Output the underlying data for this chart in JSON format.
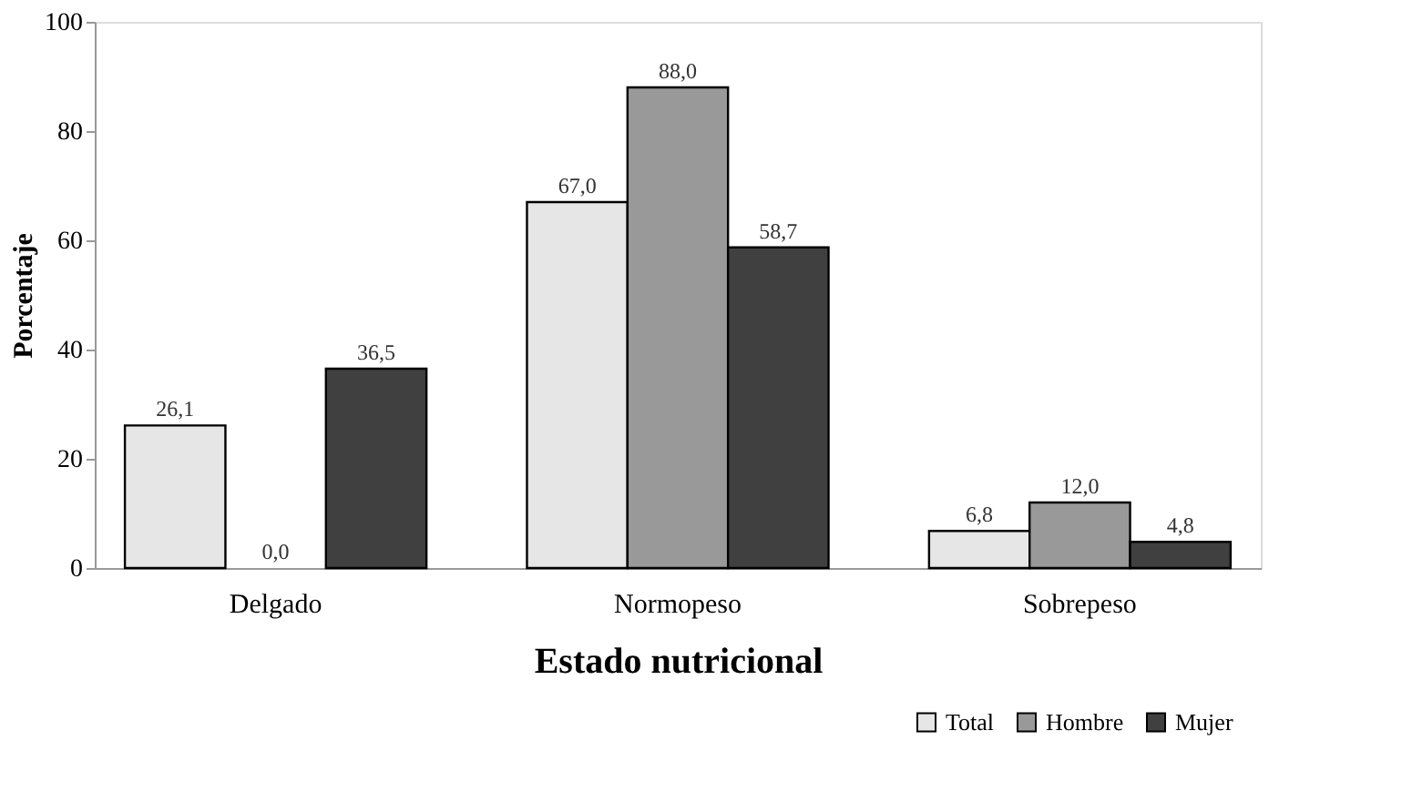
{
  "chart_data": {
    "type": "bar",
    "xlabel": "Estado nutricional",
    "ylabel": "Porcentaje",
    "categories": [
      "Delgado",
      "Normopeso",
      "Sobrepeso"
    ],
    "series": [
      {
        "name": "Total",
        "color": "#e6e6e6",
        "values": [
          26.1,
          67.0,
          6.8
        ],
        "value_labels": [
          "26,1",
          "67,0",
          "6,8"
        ]
      },
      {
        "name": "Hombre",
        "color": "#999999",
        "values": [
          0.0,
          88.0,
          12.0
        ],
        "value_labels": [
          "0,0",
          "88,0",
          "12,0"
        ]
      },
      {
        "name": "Mujer",
        "color": "#404040",
        "values": [
          36.5,
          58.7,
          4.8
        ],
        "value_labels": [
          "36,5",
          "58,7",
          "4,8"
        ]
      }
    ],
    "ylim": [
      0,
      100
    ],
    "yticks": [
      0,
      20,
      40,
      60,
      80,
      100
    ],
    "grid": false,
    "legend": "bottom right"
  }
}
